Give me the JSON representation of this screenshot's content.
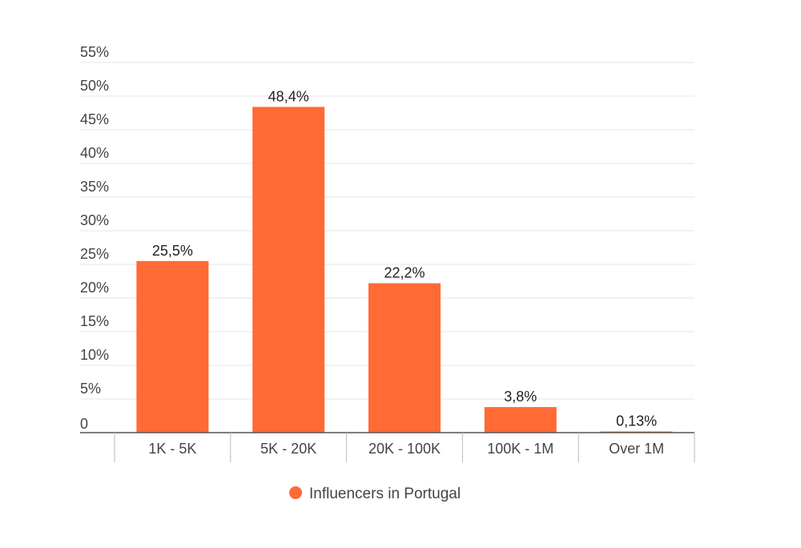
{
  "chart_data": {
    "type": "bar",
    "categories": [
      "1K - 5K",
      "5K - 20K",
      "20K - 100K",
      "100K - 1M",
      "Over 1M"
    ],
    "series": [
      {
        "name": "Influencers in Portugal",
        "values": [
          25.5,
          48.4,
          22.2,
          3.8,
          0.13
        ],
        "value_labels": [
          "25,5%",
          "48,4%",
          "22,2%",
          "3,8%",
          "0,13%"
        ],
        "color": "#ff6a35"
      }
    ],
    "y_ticks": [
      0,
      5,
      10,
      15,
      20,
      25,
      30,
      35,
      40,
      45,
      50,
      55
    ],
    "y_tick_labels": [
      "0",
      "5%",
      "10%",
      "15%",
      "20%",
      "25%",
      "30%",
      "35%",
      "40%",
      "45%",
      "50%",
      "55%"
    ],
    "ylim": [
      0,
      55
    ],
    "grid": true,
    "legend_position": "bottom",
    "title": "",
    "xlabel": "",
    "ylabel": "",
    "colors": {
      "bar": "#ff6a35",
      "grid": "#e6e6e6",
      "axis": "#555555",
      "text": "#444444"
    }
  }
}
